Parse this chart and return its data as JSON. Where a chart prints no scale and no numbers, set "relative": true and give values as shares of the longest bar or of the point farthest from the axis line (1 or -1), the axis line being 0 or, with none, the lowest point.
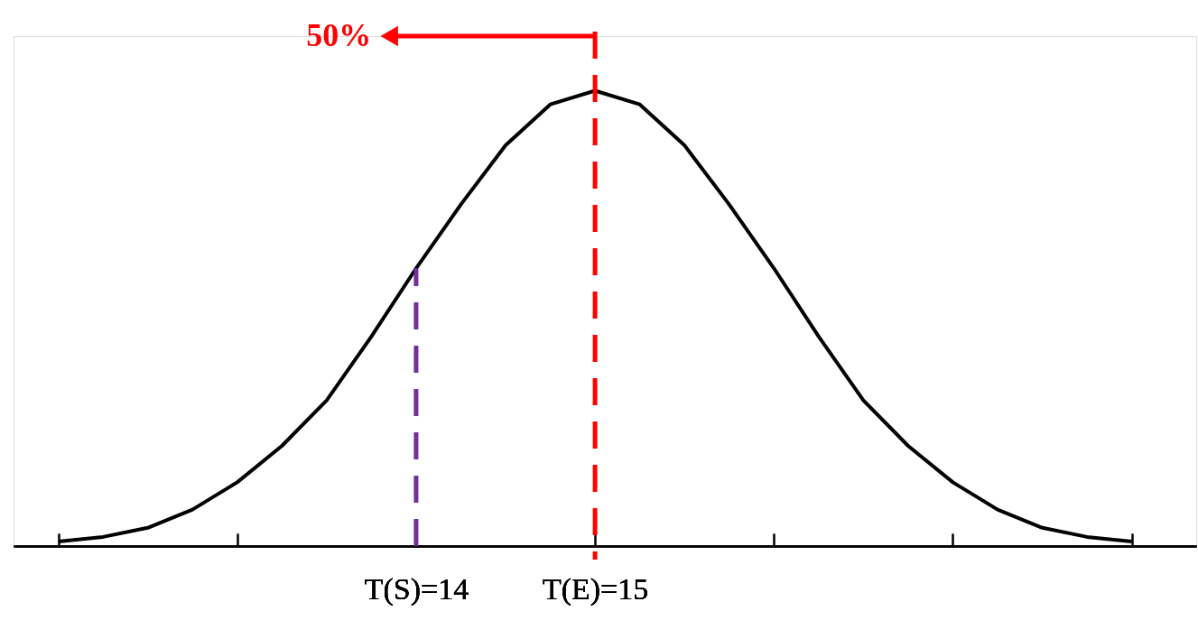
{
  "chart_data": {
    "type": "line",
    "x": [
      12,
      12.25,
      12.5,
      12.75,
      13,
      13.25,
      13.5,
      13.75,
      14,
      14.25,
      14.5,
      14.75,
      15,
      15.25,
      15.5,
      15.75,
      16,
      16.25,
      16.5,
      16.75,
      17,
      17.25,
      17.5,
      17.75,
      18
    ],
    "series": [
      {
        "color": "#000000",
        "values": [
          0.01,
          0.02,
          0.04,
          0.08,
          0.14,
          0.22,
          0.32,
          0.46,
          0.61,
          0.75,
          0.88,
          0.97,
          1.0,
          0.97,
          0.88,
          0.75,
          0.61,
          0.46,
          0.32,
          0.22,
          0.14,
          0.08,
          0.04,
          0.02,
          0.01
        ]
      }
    ],
    "relative": true,
    "xlim": [
      11.75,
      18.36
    ],
    "xticks": [
      {
        "value": 12,
        "label": null
      },
      {
        "value": 13,
        "label": null
      },
      {
        "value": 14,
        "label": "T(S)=14"
      },
      {
        "value": 15,
        "label": "T(E)=15"
      },
      {
        "value": 16,
        "label": null
      },
      {
        "value": 17,
        "label": null
      },
      {
        "value": 18,
        "label": null
      }
    ],
    "ref_lines": [
      {
        "axis": "x",
        "value": 14,
        "color": "#7030a0",
        "line_style": "dashed"
      },
      {
        "axis": "x",
        "value": 15,
        "color": "#ff0000",
        "line_style": "dashed"
      }
    ],
    "annotations": [
      "50%"
    ]
  }
}
